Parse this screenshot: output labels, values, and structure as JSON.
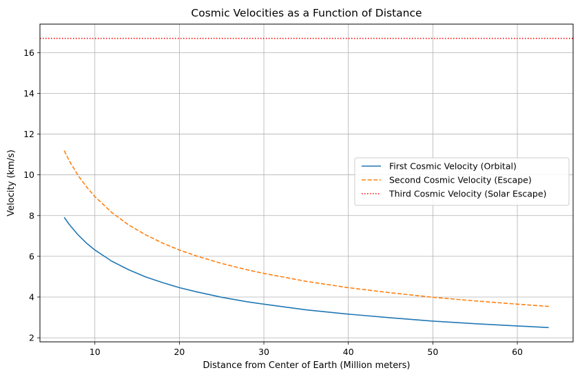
{
  "chart_data": {
    "type": "line",
    "title": "Cosmic Velocities as a Function of Distance",
    "xlabel": "Distance from Center of Earth (Million meters)",
    "ylabel": "Velocity (km/s)",
    "xlim": [
      3.5,
      66.6
    ],
    "ylim": [
      1.8,
      17.4
    ],
    "xticks": [
      10,
      20,
      30,
      40,
      50,
      60
    ],
    "yticks": [
      2,
      4,
      6,
      8,
      10,
      12,
      14,
      16
    ],
    "grid": true,
    "legend_position": "center-right",
    "series": [
      {
        "name": "First Cosmic Velocity (Orbital)",
        "color": "#1f77b4",
        "style": "solid",
        "x": [
          6.371,
          7,
          8,
          9,
          10,
          12,
          14,
          16,
          18,
          20,
          22,
          25,
          28,
          30,
          35,
          40,
          45,
          50,
          55,
          60,
          63.71
        ],
        "y": [
          7.91,
          7.55,
          7.06,
          6.65,
          6.31,
          5.76,
          5.34,
          4.99,
          4.71,
          4.46,
          4.26,
          3.99,
          3.77,
          3.65,
          3.37,
          3.16,
          2.98,
          2.82,
          2.69,
          2.58,
          2.5
        ]
      },
      {
        "name": "Second Cosmic Velocity (Escape)",
        "color": "#ff7f0e",
        "style": "dashed",
        "x": [
          6.371,
          7,
          8,
          9,
          10,
          12,
          14,
          16,
          18,
          20,
          22,
          25,
          28,
          30,
          35,
          40,
          45,
          50,
          55,
          60,
          63.71
        ],
        "y": [
          11.19,
          10.67,
          9.98,
          9.41,
          8.93,
          8.15,
          7.54,
          7.06,
          6.65,
          6.31,
          6.02,
          5.65,
          5.34,
          5.16,
          4.77,
          4.46,
          4.21,
          3.99,
          3.81,
          3.65,
          3.54
        ]
      },
      {
        "name": "Third Cosmic Velocity (Solar Escape)",
        "color": "#ff0000",
        "style": "dotted",
        "hline": 16.7
      }
    ]
  }
}
